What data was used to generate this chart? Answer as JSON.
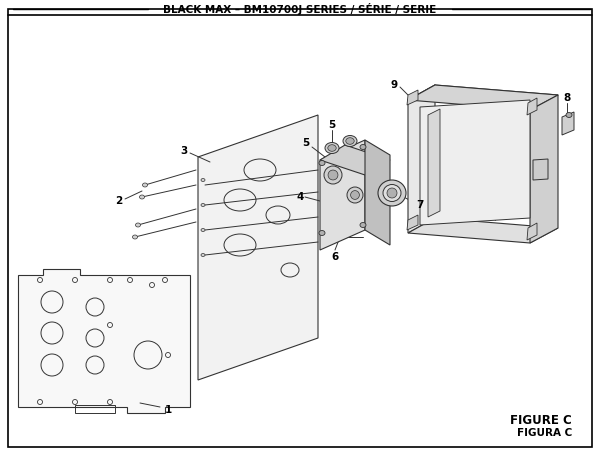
{
  "title": "BLACK MAX – BM10700J SERIES / SÉRIE / SERIE",
  "figure_label": "FIGURE C",
  "figura_label": "FIGURA C",
  "bg_color": "#ffffff",
  "border_color": "#000000",
  "line_color": "#333333",
  "light_fill": "#e8e8e8",
  "mid_fill": "#d0d0d0",
  "dark_fill": "#b0b0b0",
  "title_fontsize": 7.5,
  "label_fontsize": 7.5,
  "figure_label_fontsize": 8.5
}
